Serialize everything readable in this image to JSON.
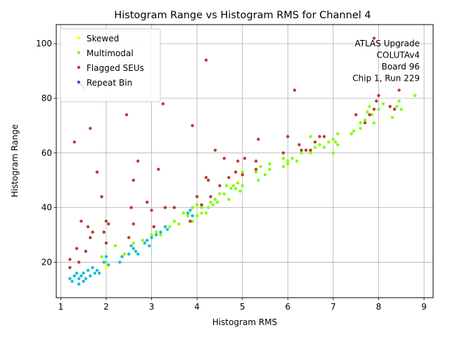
{
  "chart_data": {
    "type": "scatter",
    "title": "Histogram Range vs Histogram RMS for Channel 4",
    "xlabel": "Histogram RMS",
    "ylabel": "Histogram Range",
    "xlim": [
      0.9,
      9.2
    ],
    "ylim": [
      7,
      107
    ],
    "xticks": [
      1,
      2,
      3,
      4,
      5,
      6,
      7,
      8,
      9
    ],
    "yticks": [
      20,
      40,
      60,
      80,
      100
    ],
    "grid": true,
    "legend_position": "top-left",
    "annotation": [
      "ATLAS Upgrade",
      "COLUTAv4",
      "Board 96",
      "Chip 1, Run 229"
    ],
    "series": [
      {
        "name": "Skewed",
        "color": "#ffff00",
        "points": [
          [
            2.0,
            18
          ],
          [
            2.2,
            26
          ],
          [
            2.4,
            23
          ]
        ]
      },
      {
        "name": "Multimodal",
        "color": "#80ff00",
        "points": [
          [
            1.9,
            22
          ],
          [
            2.0,
            20
          ],
          [
            2.2,
            26
          ],
          [
            2.4,
            23
          ],
          [
            2.6,
            27
          ],
          [
            2.8,
            28
          ],
          [
            3.0,
            30
          ],
          [
            3.1,
            31
          ],
          [
            3.2,
            30
          ],
          [
            3.3,
            33
          ],
          [
            3.4,
            33
          ],
          [
            3.5,
            35
          ],
          [
            3.6,
            34
          ],
          [
            3.7,
            38
          ],
          [
            3.8,
            37
          ],
          [
            3.9,
            40
          ],
          [
            3.9,
            35
          ],
          [
            4.0,
            37
          ],
          [
            4.0,
            41
          ],
          [
            4.1,
            38
          ],
          [
            4.1,
            40
          ],
          [
            4.2,
            38
          ],
          [
            4.25,
            40
          ],
          [
            4.3,
            42
          ],
          [
            4.35,
            41
          ],
          [
            4.4,
            43
          ],
          [
            4.45,
            42
          ],
          [
            4.5,
            45
          ],
          [
            4.6,
            45
          ],
          [
            4.65,
            48
          ],
          [
            4.7,
            43
          ],
          [
            4.75,
            47
          ],
          [
            4.8,
            48
          ],
          [
            4.85,
            47
          ],
          [
            4.9,
            49
          ],
          [
            4.95,
            46
          ],
          [
            5.0,
            48
          ],
          [
            5.0,
            53
          ],
          [
            5.3,
            53
          ],
          [
            5.35,
            50
          ],
          [
            5.4,
            55
          ],
          [
            5.5,
            52
          ],
          [
            5.6,
            54
          ],
          [
            5.6,
            56
          ],
          [
            5.9,
            55
          ],
          [
            5.9,
            58
          ],
          [
            6.0,
            56
          ],
          [
            6.0,
            57
          ],
          [
            6.1,
            58
          ],
          [
            6.2,
            57
          ],
          [
            6.3,
            60
          ],
          [
            6.4,
            61
          ],
          [
            6.5,
            60
          ],
          [
            6.5,
            66
          ],
          [
            6.6,
            62
          ],
          [
            6.7,
            63
          ],
          [
            6.8,
            62
          ],
          [
            6.9,
            64
          ],
          [
            7.0,
            60
          ],
          [
            7.0,
            65
          ],
          [
            7.05,
            64
          ],
          [
            7.1,
            63
          ],
          [
            7.1,
            67
          ],
          [
            7.4,
            67
          ],
          [
            7.45,
            68
          ],
          [
            7.6,
            69
          ],
          [
            7.6,
            71
          ],
          [
            7.7,
            72
          ],
          [
            7.75,
            75
          ],
          [
            7.8,
            77
          ],
          [
            7.85,
            74
          ],
          [
            7.9,
            71
          ],
          [
            8.0,
            76
          ],
          [
            8.1,
            78
          ],
          [
            8.3,
            73
          ],
          [
            8.4,
            77
          ],
          [
            8.45,
            79
          ],
          [
            8.5,
            76
          ],
          [
            8.8,
            81
          ]
        ]
      },
      {
        "name": "Flagged SEUs",
        "color": "#c0392b",
        "points": [
          [
            1.2,
            21
          ],
          [
            1.2,
            18
          ],
          [
            1.3,
            64
          ],
          [
            1.35,
            25
          ],
          [
            1.4,
            20
          ],
          [
            1.45,
            35
          ],
          [
            1.5,
            84
          ],
          [
            1.55,
            24
          ],
          [
            1.6,
            33
          ],
          [
            1.65,
            29
          ],
          [
            1.65,
            69
          ],
          [
            1.7,
            31
          ],
          [
            1.8,
            53
          ],
          [
            1.9,
            44
          ],
          [
            1.95,
            31
          ],
          [
            2.0,
            27
          ],
          [
            2.0,
            35
          ],
          [
            2.05,
            34
          ],
          [
            2.45,
            74
          ],
          [
            2.5,
            29
          ],
          [
            2.55,
            40
          ],
          [
            2.6,
            50
          ],
          [
            2.6,
            34
          ],
          [
            2.7,
            57
          ],
          [
            2.9,
            42
          ],
          [
            3.0,
            39
          ],
          [
            3.05,
            33
          ],
          [
            3.15,
            54
          ],
          [
            3.25,
            78
          ],
          [
            3.3,
            40
          ],
          [
            3.5,
            40
          ],
          [
            3.85,
            35
          ],
          [
            3.9,
            70
          ],
          [
            4.0,
            44
          ],
          [
            4.1,
            41
          ],
          [
            4.2,
            94
          ],
          [
            4.2,
            51
          ],
          [
            4.25,
            50
          ],
          [
            4.3,
            44
          ],
          [
            4.4,
            61
          ],
          [
            4.5,
            48
          ],
          [
            4.6,
            58
          ],
          [
            4.7,
            51
          ],
          [
            4.85,
            53
          ],
          [
            4.9,
            57
          ],
          [
            5.0,
            52
          ],
          [
            5.05,
            58
          ],
          [
            5.3,
            57
          ],
          [
            5.3,
            54
          ],
          [
            5.35,
            65
          ],
          [
            5.9,
            60
          ],
          [
            6.0,
            66
          ],
          [
            6.15,
            83
          ],
          [
            6.25,
            63
          ],
          [
            6.3,
            61
          ],
          [
            6.4,
            61
          ],
          [
            6.5,
            61
          ],
          [
            6.6,
            64
          ],
          [
            6.7,
            66
          ],
          [
            6.8,
            66
          ],
          [
            7.5,
            74
          ],
          [
            7.7,
            71
          ],
          [
            7.8,
            74
          ],
          [
            7.9,
            76
          ],
          [
            7.95,
            79
          ],
          [
            7.9,
            102
          ],
          [
            8.0,
            81
          ],
          [
            8.25,
            77
          ],
          [
            8.35,
            76
          ],
          [
            8.45,
            83
          ]
        ]
      },
      {
        "name": "Repeat Bin",
        "color": "#7b2fbe",
        "points": [
          [
            1.45,
            85
          ]
        ]
      },
      {
        "color": "#17becf",
        "points": [
          [
            1.2,
            14
          ],
          [
            1.25,
            13
          ],
          [
            1.3,
            15
          ],
          [
            1.35,
            16
          ],
          [
            1.4,
            14
          ],
          [
            1.4,
            12
          ],
          [
            1.45,
            15
          ],
          [
            1.5,
            13
          ],
          [
            1.5,
            16
          ],
          [
            1.55,
            14
          ],
          [
            1.6,
            17
          ],
          [
            1.65,
            15
          ],
          [
            1.7,
            18
          ],
          [
            1.75,
            16
          ],
          [
            1.8,
            17
          ],
          [
            1.85,
            16
          ],
          [
            1.95,
            20
          ],
          [
            2.0,
            22
          ],
          [
            2.05,
            19
          ],
          [
            2.3,
            20
          ],
          [
            2.35,
            22
          ],
          [
            2.5,
            23
          ],
          [
            2.55,
            26
          ],
          [
            2.6,
            25
          ],
          [
            2.65,
            24
          ],
          [
            2.7,
            23
          ],
          [
            2.85,
            27
          ],
          [
            2.9,
            28
          ],
          [
            2.95,
            26
          ],
          [
            3.0,
            29
          ],
          [
            3.1,
            30
          ],
          [
            3.2,
            31
          ],
          [
            3.3,
            33
          ],
          [
            3.35,
            32
          ],
          [
            3.8,
            38
          ],
          [
            3.85,
            39
          ],
          [
            3.9,
            37
          ]
        ]
      }
    ]
  }
}
